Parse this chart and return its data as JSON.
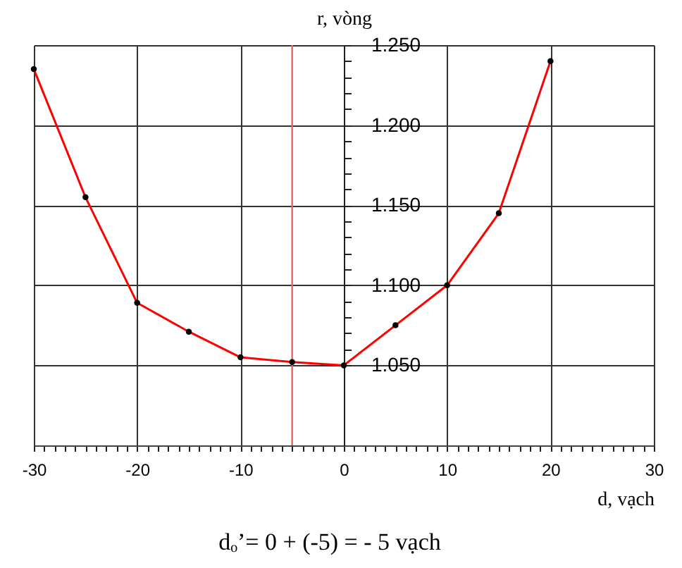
{
  "chart_data": {
    "type": "line",
    "xlabel": "d, vạch",
    "ylabel": "r, vòng",
    "annotations": [
      "dₒ’= 0 + (-5) = - 5 vạch"
    ],
    "x": [
      -30,
      -25,
      -20,
      -15,
      -10,
      -5,
      0,
      5,
      10,
      15,
      20
    ],
    "series": [
      {
        "color": "#ff0000",
        "values": [
          1.235,
          1.155,
          1.089,
          1.071,
          1.055,
          1.052,
          1.05,
          1.075,
          1.1,
          1.145,
          1.24
        ]
      }
    ],
    "xlim": [
      -30,
      30
    ],
    "ylim": [
      1.0,
      1.25
    ],
    "xticks": [
      -30,
      {
        "value": -29,
        "label": null
      },
      {
        "value": -28,
        "label": null
      },
      {
        "value": -27,
        "label": null
      },
      {
        "value": -26,
        "label": null
      },
      {
        "value": -25,
        "label": null
      },
      {
        "value": -24,
        "label": null
      },
      {
        "value": -23,
        "label": null
      },
      {
        "value": -22,
        "label": null
      },
      {
        "value": -21,
        "label": null
      },
      -20,
      {
        "value": -19,
        "label": null
      },
      {
        "value": -18,
        "label": null
      },
      {
        "value": -17,
        "label": null
      },
      {
        "value": -16,
        "label": null
      },
      {
        "value": -15,
        "label": null
      },
      {
        "value": -14,
        "label": null
      },
      {
        "value": -13,
        "label": null
      },
      {
        "value": -12,
        "label": null
      },
      {
        "value": -11,
        "label": null
      },
      -10,
      {
        "value": -9,
        "label": null
      },
      {
        "value": -8,
        "label": null
      },
      {
        "value": -7,
        "label": null
      },
      {
        "value": -6,
        "label": null
      },
      {
        "value": -5,
        "label": null
      },
      {
        "value": -4,
        "label": null
      },
      {
        "value": -3,
        "label": null
      },
      {
        "value": -2,
        "label": null
      },
      {
        "value": -1,
        "label": null
      },
      0,
      {
        "value": 1,
        "label": null
      },
      {
        "value": 2,
        "label": null
      },
      {
        "value": 3,
        "label": null
      },
      {
        "value": 4,
        "label": null
      },
      {
        "value": 5,
        "label": null
      },
      {
        "value": 6,
        "label": null
      },
      {
        "value": 7,
        "label": null
      },
      {
        "value": 8,
        "label": null
      },
      {
        "value": 9,
        "label": null
      },
      10,
      {
        "value": 11,
        "label": null
      },
      {
        "value": 12,
        "label": null
      },
      {
        "value": 13,
        "label": null
      },
      {
        "value": 14,
        "label": null
      },
      {
        "value": 15,
        "label": null
      },
      {
        "value": 16,
        "label": null
      },
      {
        "value": 17,
        "label": null
      },
      {
        "value": 18,
        "label": null
      },
      {
        "value": 19,
        "label": null
      },
      20,
      {
        "value": 21,
        "label": null
      },
      {
        "value": 22,
        "label": null
      },
      {
        "value": 23,
        "label": null
      },
      {
        "value": 24,
        "label": null
      },
      {
        "value": 25,
        "label": null
      },
      {
        "value": 26,
        "label": null
      },
      {
        "value": 27,
        "label": null
      },
      {
        "value": 28,
        "label": null
      },
      {
        "value": 29,
        "label": null
      },
      30
    ],
    "yticks": [
      {
        "value": 1.05,
        "label": "1.050"
      },
      {
        "value": 1.06,
        "label": null
      },
      {
        "value": 1.07,
        "label": null
      },
      {
        "value": 1.08,
        "label": null
      },
      {
        "value": 1.09,
        "label": null
      },
      {
        "value": 1.1,
        "label": "1.100"
      },
      {
        "value": 1.11,
        "label": null
      },
      {
        "value": 1.12,
        "label": null
      },
      {
        "value": 1.13,
        "label": null
      },
      {
        "value": 1.14,
        "label": null
      },
      {
        "value": 1.15,
        "label": "1.150"
      },
      {
        "value": 1.16,
        "label": null
      },
      {
        "value": 1.17,
        "label": null
      },
      {
        "value": 1.18,
        "label": null
      },
      {
        "value": 1.19,
        "label": null
      },
      {
        "value": 1.2,
        "label": "1.200"
      },
      {
        "value": 1.21,
        "label": null
      },
      {
        "value": 1.22,
        "label": null
      },
      {
        "value": 1.23,
        "label": null
      },
      {
        "value": 1.24,
        "label": null
      },
      {
        "value": 1.25,
        "label": "1.250"
      }
    ],
    "grid": true,
    "marker": "circle",
    "ref_lines": [
      {
        "axis": "x",
        "value": -5,
        "color": "#f06060"
      }
    ]
  }
}
